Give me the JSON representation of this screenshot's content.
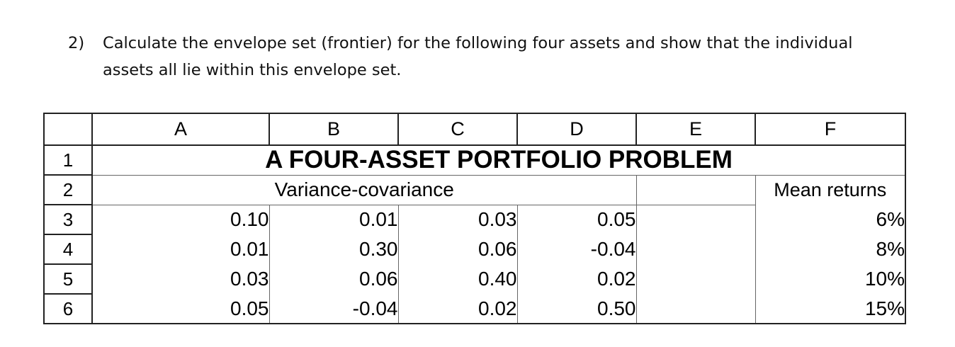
{
  "question": {
    "number": "2)",
    "line1": "Calculate the envelope set (frontier) for the following four assets and show that the individual",
    "line2": "assets all lie within this envelope set."
  },
  "sheet": {
    "columns": [
      "A",
      "B",
      "C",
      "D",
      "E",
      "F"
    ],
    "row_numbers": [
      "1",
      "2",
      "3",
      "4",
      "5",
      "6"
    ],
    "title": "A FOUR-ASSET PORTFOLIO PROBLEM",
    "varcov_label": "Variance-covariance",
    "mean_returns_label": "Mean returns",
    "matrix": [
      [
        "0.10",
        "0.01",
        "0.03",
        "0.05"
      ],
      [
        "0.01",
        "0.30",
        "0.06",
        "-0.04"
      ],
      [
        "0.03",
        "0.06",
        "0.40",
        "0.02"
      ],
      [
        "0.05",
        "-0.04",
        "0.02",
        "0.50"
      ]
    ],
    "mean_returns": [
      "6%",
      "8%",
      "10%",
      "15%"
    ]
  }
}
